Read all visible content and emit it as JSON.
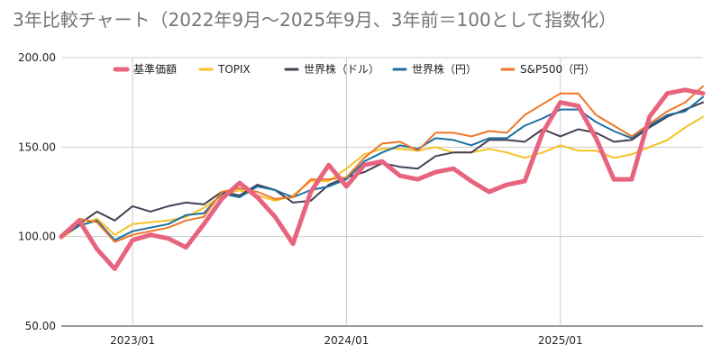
{
  "chart_data": {
    "type": "line",
    "title": "3年比較チャート（2022年9月～2025年9月、3年前＝100として指数化）",
    "xlabel": "",
    "ylabel": "",
    "ylim": [
      50,
      200
    ],
    "yticks": [
      "50.00",
      "100.00",
      "150.00",
      "200.00"
    ],
    "xticks": [
      {
        "label": "2023/01",
        "index": 4
      },
      {
        "label": "2024/01",
        "index": 16
      },
      {
        "label": "2025/01",
        "index": 28
      }
    ],
    "x": [
      "2022/09",
      "2022/10",
      "2022/11",
      "2022/12",
      "2023/01",
      "2023/02",
      "2023/03",
      "2023/04",
      "2023/05",
      "2023/06",
      "2023/07",
      "2023/08",
      "2023/09",
      "2023/10",
      "2023/11",
      "2023/12",
      "2024/01",
      "2024/02",
      "2024/03",
      "2024/04",
      "2024/05",
      "2024/06",
      "2024/07",
      "2024/08",
      "2024/09",
      "2024/10",
      "2024/11",
      "2024/12",
      "2025/01",
      "2025/02",
      "2025/03",
      "2025/04",
      "2025/05",
      "2025/06",
      "2025/07",
      "2025/08",
      "2025/09"
    ],
    "grid": true,
    "legend_position": "top",
    "series": [
      {
        "name": "基準価額",
        "color": "#e8637e",
        "values": [
          100,
          109,
          93,
          82,
          98,
          101,
          99,
          94,
          107,
          121,
          130,
          122,
          111,
          96,
          125,
          140,
          128,
          140,
          142,
          134,
          132,
          136,
          138,
          131,
          125,
          129,
          131,
          158,
          175,
          173,
          155,
          132,
          132,
          167,
          180,
          182,
          180
        ]
      },
      {
        "name": "TOPIX",
        "color": "#f5c124",
        "values": [
          99,
          106,
          110,
          101,
          107,
          108,
          109,
          111,
          116,
          123,
          126,
          123,
          120,
          123,
          131,
          131,
          138,
          146,
          149,
          149,
          148,
          150,
          147,
          147,
          149,
          147,
          144,
          147,
          151,
          148,
          148,
          144,
          146,
          150,
          154,
          161,
          167
        ]
      },
      {
        "name": "世界株（ドル）",
        "color": "#444155",
        "values": [
          100,
          107,
          114,
          109,
          117,
          114,
          117,
          119,
          118,
          125,
          123,
          129,
          126,
          119,
          120,
          129,
          133,
          136,
          141,
          139,
          138,
          145,
          147,
          147,
          154,
          154,
          153,
          160,
          156,
          160,
          158,
          153,
          154,
          161,
          167,
          171,
          175
        ]
      },
      {
        "name": "世界株（円）",
        "color": "#1d6fa3",
        "values": [
          100,
          106,
          109,
          98,
          103,
          105,
          107,
          112,
          113,
          124,
          122,
          128,
          126,
          122,
          126,
          128,
          132,
          142,
          147,
          151,
          149,
          155,
          154,
          151,
          155,
          155,
          162,
          166,
          171,
          171,
          164,
          159,
          155,
          162,
          168,
          170,
          178
        ]
      },
      {
        "name": "S&P500（円）",
        "color": "#ee7728",
        "values": [
          99,
          110,
          108,
          97,
          101,
          103,
          105,
          109,
          111,
          125,
          127,
          125,
          121,
          122,
          132,
          132,
          133,
          144,
          152,
          153,
          148,
          158,
          158,
          156,
          159,
          158,
          168,
          174,
          180,
          180,
          168,
          162,
          156,
          163,
          170,
          175,
          184
        ]
      }
    ]
  }
}
